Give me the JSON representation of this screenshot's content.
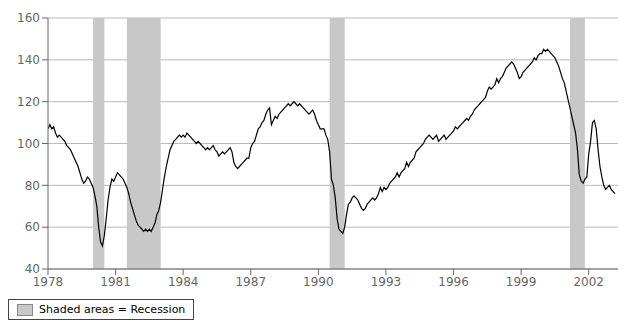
{
  "chart_data": {
    "type": "line",
    "color": "#000000",
    "grid": true,
    "legend": "lower right",
    "xlim": [
      1978.0,
      2003.3
    ],
    "ylim": [
      40,
      160
    ],
    "xticks": [
      1978,
      1981,
      1984,
      1987,
      1990,
      1993,
      1996,
      1999,
      2002
    ],
    "yticks": [
      40,
      60,
      80,
      100,
      120,
      140,
      160
    ],
    "shaded": {
      "name": "Shaded areas = Recession",
      "color": "#c8c8c8",
      "ranges": [
        [
          1980.0,
          1980.5
        ],
        [
          1981.5,
          1983.0
        ],
        [
          1990.5,
          1991.17
        ],
        [
          2001.17,
          2001.83
        ]
      ]
    },
    "x": [
      1978.0,
      1978.083,
      1978.167,
      1978.25,
      1978.333,
      1978.417,
      1978.5,
      1978.583,
      1978.667,
      1978.75,
      1978.833,
      1978.917,
      1979.0,
      1979.083,
      1979.167,
      1979.25,
      1979.333,
      1979.417,
      1979.5,
      1979.583,
      1979.667,
      1979.75,
      1979.833,
      1979.917,
      1980.0,
      1980.083,
      1980.167,
      1980.25,
      1980.333,
      1980.417,
      1980.5,
      1980.583,
      1980.667,
      1980.75,
      1980.833,
      1980.917,
      1981.0,
      1981.083,
      1981.167,
      1981.25,
      1981.333,
      1981.417,
      1981.5,
      1981.583,
      1981.667,
      1981.75,
      1981.833,
      1981.917,
      1982.0,
      1982.083,
      1982.167,
      1982.25,
      1982.333,
      1982.417,
      1982.5,
      1982.583,
      1982.667,
      1982.75,
      1982.833,
      1982.917,
      1983.0,
      1983.083,
      1983.167,
      1983.25,
      1983.333,
      1983.417,
      1983.5,
      1983.583,
      1983.667,
      1983.75,
      1983.833,
      1983.917,
      1984.0,
      1984.083,
      1984.167,
      1984.25,
      1984.333,
      1984.417,
      1984.5,
      1984.583,
      1984.667,
      1984.75,
      1984.833,
      1984.917,
      1985.0,
      1985.083,
      1985.167,
      1985.25,
      1985.333,
      1985.417,
      1985.5,
      1985.583,
      1985.667,
      1985.75,
      1985.833,
      1985.917,
      1986.0,
      1986.083,
      1986.167,
      1986.25,
      1986.333,
      1986.417,
      1986.5,
      1986.583,
      1986.667,
      1986.75,
      1986.833,
      1986.917,
      1987.0,
      1987.083,
      1987.167,
      1987.25,
      1987.333,
      1987.417,
      1987.5,
      1987.583,
      1987.667,
      1987.75,
      1987.833,
      1987.917,
      1988.0,
      1988.083,
      1988.167,
      1988.25,
      1988.333,
      1988.417,
      1988.5,
      1988.583,
      1988.667,
      1988.75,
      1988.833,
      1988.917,
      1989.0,
      1989.083,
      1989.167,
      1989.25,
      1989.333,
      1989.417,
      1989.5,
      1989.583,
      1989.667,
      1989.75,
      1989.833,
      1989.917,
      1990.0,
      1990.083,
      1990.167,
      1990.25,
      1990.333,
      1990.417,
      1990.5,
      1990.583,
      1990.667,
      1990.75,
      1990.833,
      1990.917,
      1991.0,
      1991.083,
      1991.167,
      1991.25,
      1991.333,
      1991.417,
      1991.5,
      1991.583,
      1991.667,
      1991.75,
      1991.833,
      1991.917,
      1992.0,
      1992.083,
      1992.167,
      1992.25,
      1992.333,
      1992.417,
      1992.5,
      1992.583,
      1992.667,
      1992.75,
      1992.833,
      1992.917,
      1993.0,
      1993.083,
      1993.167,
      1993.25,
      1993.333,
      1993.417,
      1993.5,
      1993.583,
      1993.667,
      1993.75,
      1993.833,
      1993.917,
      1994.0,
      1994.083,
      1994.167,
      1994.25,
      1994.333,
      1994.417,
      1994.5,
      1994.583,
      1994.667,
      1994.75,
      1994.833,
      1994.917,
      1995.0,
      1995.083,
      1995.167,
      1995.25,
      1995.333,
      1995.417,
      1995.5,
      1995.583,
      1995.667,
      1995.75,
      1995.833,
      1995.917,
      1996.0,
      1996.083,
      1996.167,
      1996.25,
      1996.333,
      1996.417,
      1996.5,
      1996.583,
      1996.667,
      1996.75,
      1996.833,
      1996.917,
      1997.0,
      1997.083,
      1997.167,
      1997.25,
      1997.333,
      1997.417,
      1997.5,
      1997.583,
      1997.667,
      1997.75,
      1997.833,
      1997.917,
      1998.0,
      1998.083,
      1998.167,
      1998.25,
      1998.333,
      1998.417,
      1998.5,
      1998.583,
      1998.667,
      1998.75,
      1998.833,
      1998.917,
      1999.0,
      1999.083,
      1999.167,
      1999.25,
      1999.333,
      1999.417,
      1999.5,
      1999.583,
      1999.667,
      1999.75,
      1999.833,
      1999.917,
      2000.0,
      2000.083,
      2000.167,
      2000.25,
      2000.333,
      2000.417,
      2000.5,
      2000.583,
      2000.667,
      2000.75,
      2000.833,
      2000.917,
      2001.0,
      2001.083,
      2001.167,
      2001.25,
      2001.333,
      2001.417,
      2001.5,
      2001.583,
      2001.667,
      2001.75,
      2001.833,
      2001.917,
      2002.0,
      2002.083,
      2002.167,
      2002.25,
      2002.333,
      2002.417,
      2002.5,
      2002.583,
      2002.667,
      2002.75,
      2002.833,
      2002.917,
      2003.0,
      2003.083,
      2003.167
    ],
    "values": [
      107,
      109,
      107,
      108,
      105,
      103,
      104,
      103,
      102,
      101,
      99,
      98,
      97,
      95,
      93,
      91,
      89,
      86,
      83,
      81,
      82,
      84,
      83,
      81,
      79,
      75,
      70,
      60,
      53,
      51,
      56,
      64,
      73,
      79,
      83,
      82,
      84,
      86,
      85,
      84,
      83,
      81,
      79,
      76,
      72,
      69,
      66,
      63,
      61,
      60,
      59,
      58,
      59,
      58,
      59,
      58,
      60,
      62,
      66,
      68,
      72,
      78,
      84,
      89,
      93,
      97,
      99,
      101,
      102,
      103,
      104,
      103,
      104,
      103,
      105,
      104,
      103,
      102,
      101,
      100,
      101,
      100,
      99,
      98,
      97,
      98,
      97,
      98,
      99,
      97,
      96,
      94,
      95,
      96,
      95,
      96,
      97,
      98,
      96,
      91,
      89,
      88,
      89,
      90,
      91,
      92,
      93,
      93,
      98,
      100,
      101,
      104,
      107,
      108,
      110,
      111,
      114,
      116,
      117,
      109,
      111,
      113,
      112,
      114,
      115,
      116,
      117,
      118,
      119,
      118,
      119,
      120,
      119,
      118,
      119,
      118,
      117,
      116,
      115,
      114,
      115,
      116,
      114,
      111,
      109,
      107,
      107,
      107,
      104,
      102,
      96,
      83,
      80,
      74,
      64,
      59,
      58,
      57,
      60,
      66,
      71,
      72,
      74,
      75,
      74,
      73,
      71,
      69,
      68,
      69,
      71,
      72,
      73,
      74,
      73,
      74,
      76,
      79,
      77,
      79,
      78,
      79,
      81,
      82,
      83,
      84,
      86,
      84,
      86,
      87,
      88,
      91,
      89,
      91,
      92,
      93,
      96,
      97,
      98,
      99,
      100,
      102,
      103,
      104,
      103,
      102,
      103,
      104,
      101,
      102,
      103,
      104,
      102,
      103,
      104,
      105,
      106,
      108,
      107,
      108,
      109,
      110,
      111,
      112,
      111,
      113,
      114,
      116,
      117,
      118,
      119,
      120,
      121,
      122,
      125,
      127,
      126,
      127,
      128,
      131,
      129,
      131,
      132,
      134,
      136,
      137,
      138,
      139,
      138,
      136,
      134,
      131,
      132,
      134,
      135,
      136,
      137,
      138,
      139,
      141,
      140,
      142,
      143,
      143,
      145,
      144,
      145,
      144,
      143,
      142,
      141,
      139,
      137,
      134,
      131,
      129,
      125,
      121,
      117,
      113,
      109,
      105,
      97,
      85,
      82,
      81,
      83,
      84,
      95,
      101,
      110,
      111,
      107,
      97,
      89,
      84,
      80,
      78,
      79,
      80,
      78,
      77,
      76
    ]
  }
}
